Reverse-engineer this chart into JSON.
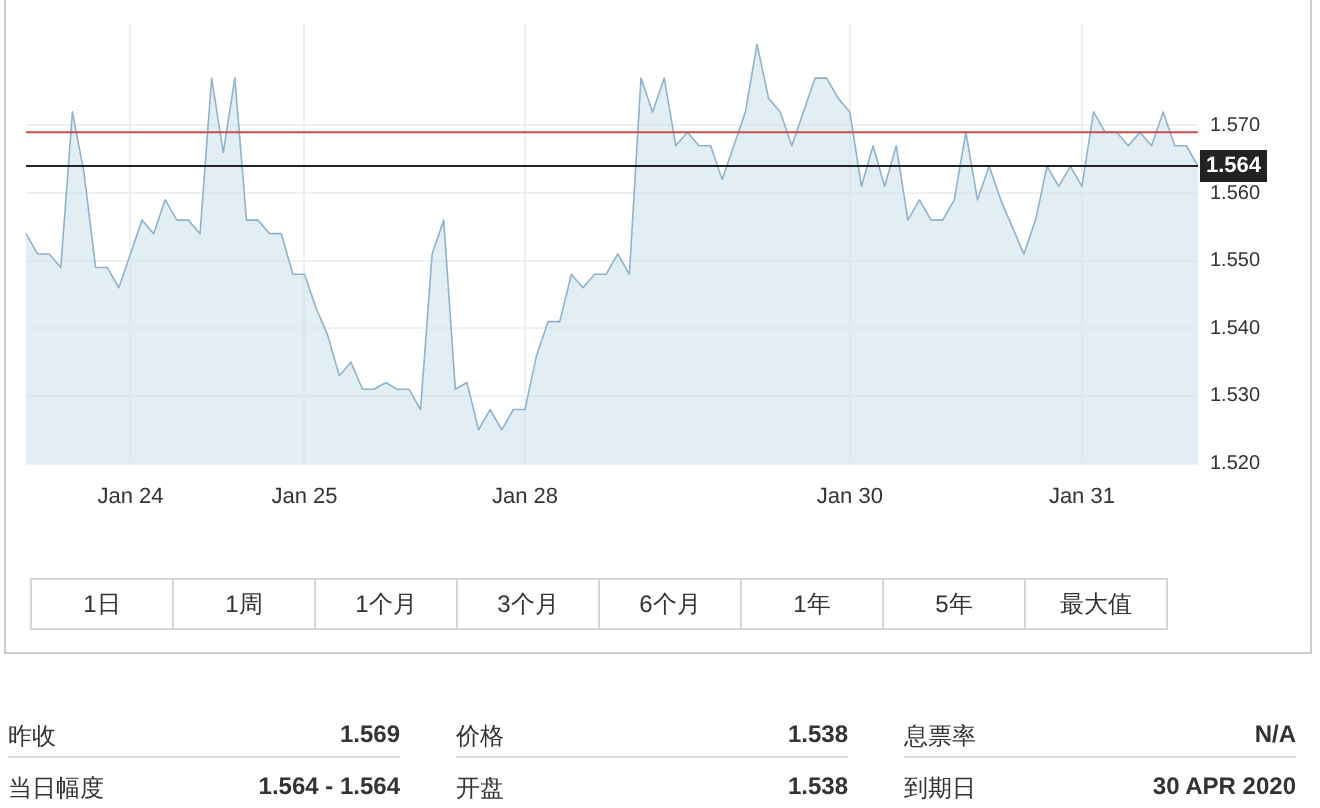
{
  "chart_data": {
    "type": "area",
    "categories": [
      null,
      null,
      null,
      null,
      null,
      null,
      null,
      null,
      null,
      "Jan 24",
      null,
      null,
      null,
      null,
      null,
      null,
      null,
      null,
      null,
      null,
      null,
      null,
      null,
      null,
      "Jan 25",
      null,
      null,
      null,
      null,
      null,
      null,
      null,
      null,
      null,
      null,
      null,
      null,
      null,
      null,
      null,
      null,
      null,
      null,
      "Jan 28",
      null,
      null,
      null,
      null,
      null,
      null,
      null,
      null,
      null,
      null,
      null,
      null,
      null,
      null,
      null,
      null,
      null,
      null,
      null,
      null,
      null,
      null,
      null,
      null,
      null,
      null,
      null,
      "Jan 30",
      null,
      null,
      null,
      null,
      null,
      null,
      null,
      null,
      null,
      null,
      null,
      null,
      null,
      null,
      null,
      null,
      null,
      null,
      null,
      "Jan 31",
      null,
      null,
      null,
      null,
      null,
      null,
      null,
      null,
      null,
      null
    ],
    "series": [
      {
        "color": "#8fb3cf",
        "values": [
          1.554,
          1.551,
          1.551,
          1.549,
          1.572,
          1.563,
          1.549,
          1.549,
          1.546,
          1.551,
          1.556,
          1.554,
          1.559,
          1.556,
          1.556,
          1.554,
          1.577,
          1.566,
          1.577,
          1.556,
          1.556,
          1.554,
          1.554,
          1.548,
          1.548,
          1.543,
          1.539,
          1.533,
          1.535,
          1.531,
          1.531,
          1.532,
          1.531,
          1.531,
          1.528,
          1.551,
          1.556,
          1.531,
          1.532,
          1.525,
          1.528,
          1.525,
          1.528,
          1.528,
          1.536,
          1.541,
          1.541,
          1.548,
          1.546,
          1.548,
          1.548,
          1.551,
          1.548,
          1.577,
          1.572,
          1.577,
          1.567,
          1.569,
          1.567,
          1.567,
          1.562,
          1.567,
          1.572,
          1.582,
          1.574,
          1.572,
          1.567,
          1.572,
          1.577,
          1.577,
          1.574,
          1.572,
          1.561,
          1.567,
          1.561,
          1.567,
          1.556,
          1.559,
          1.556,
          1.556,
          1.559,
          1.569,
          1.559,
          1.564,
          1.559,
          1.555,
          1.551,
          1.556,
          1.564,
          1.561,
          1.564,
          1.561,
          1.572,
          1.569,
          1.569,
          1.567,
          1.569,
          1.567,
          1.572,
          1.567,
          1.567,
          1.564
        ]
      }
    ],
    "ylim": [
      1.52,
      1.585
    ],
    "yticks": [
      {
        "value": 1.52,
        "label": "1.520"
      },
      {
        "value": 1.53,
        "label": "1.530"
      },
      {
        "value": 1.54,
        "label": "1.540"
      },
      {
        "value": 1.55,
        "label": "1.550"
      },
      {
        "value": 1.56,
        "label": "1.560"
      },
      {
        "value": 1.57,
        "label": "1.570"
      }
    ],
    "ref_lines": [
      {
        "axis": "y",
        "value": 1.569,
        "color": "#c0504d"
      },
      {
        "axis": "y",
        "value": 1.564,
        "label": "1.564",
        "color": "#222222"
      }
    ],
    "grid": true,
    "legend": false,
    "marker": "none",
    "annotations": [
      "1日",
      "1周",
      "1个月",
      "3个月",
      "6个月",
      "1年",
      "5年",
      "最大值",
      "昨收",
      "1.569",
      "当日幅度",
      "1.564 - 1.564",
      "价格",
      "1.538",
      "开盘",
      "1.538",
      "息票率",
      "N/A",
      "到期日",
      "30 APR 2020"
    ]
  }
}
